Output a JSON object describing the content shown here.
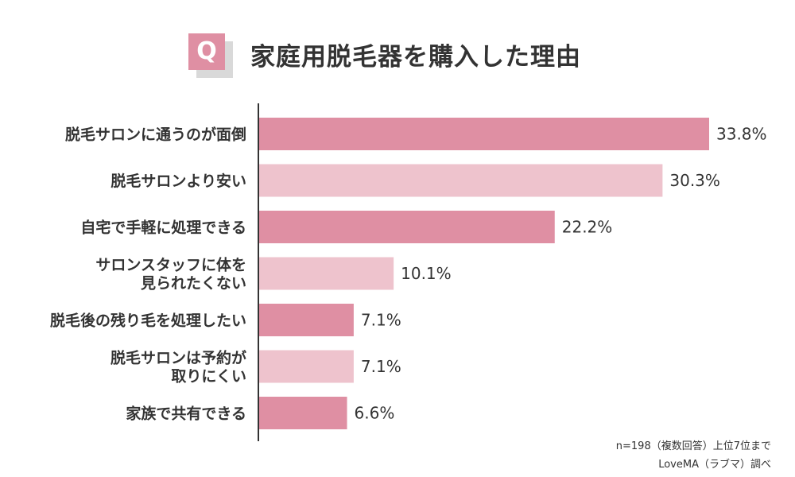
{
  "title": {
    "badge": "Q",
    "text": "家庭用脱毛器を購入した理由"
  },
  "chart_data": {
    "type": "bar",
    "orientation": "horizontal",
    "categories": [
      [
        "脱毛サロンに通うのが面倒"
      ],
      [
        "脱毛サロンより安い"
      ],
      [
        "自宅で手軽に処理できる"
      ],
      [
        "サロンスタッフに体を",
        "見られたくない"
      ],
      [
        "脱毛後の残り毛を処理したい"
      ],
      [
        "脱毛サロンは予約が",
        "取りにくい"
      ],
      [
        "家族で共有できる"
      ]
    ],
    "values": [
      33.8,
      30.3,
      22.2,
      10.1,
      7.1,
      7.1,
      6.6
    ],
    "value_labels": [
      "33.8%",
      "30.3%",
      "22.2%",
      "10.1%",
      "7.1%",
      "7.1%",
      "6.6%"
    ],
    "colors": [
      "#df8fa3",
      "#eec3cd"
    ],
    "xlim": [
      0,
      33.8
    ],
    "grid": false,
    "title": "家庭用脱毛器を購入した理由"
  },
  "notes": {
    "sample": "n=198（複数回答）上位7位まで",
    "source": "LoveMA（ラブマ）調べ"
  }
}
